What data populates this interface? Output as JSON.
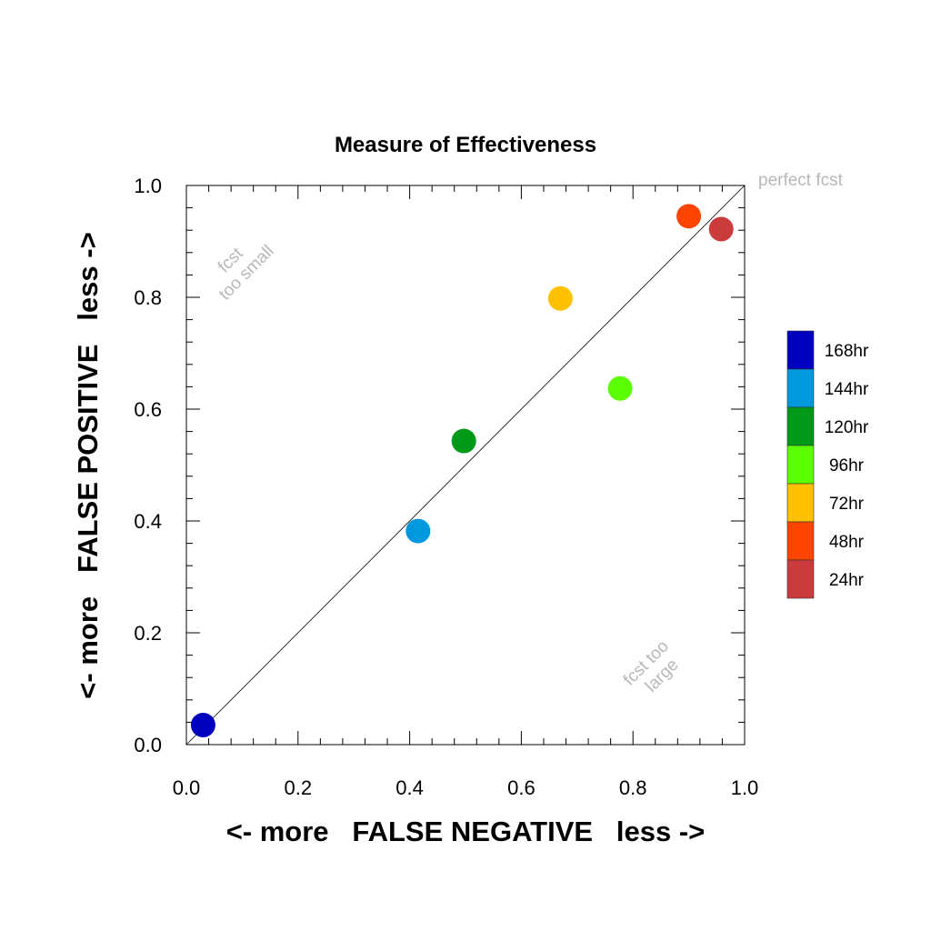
{
  "chart_data": {
    "type": "scatter",
    "title": "Measure of Effectiveness",
    "xlabel": "<- more   FALSE NEGATIVE   less ->",
    "ylabel": "<- more   FALSE POSITIVE   less ->",
    "xlim": [
      0.0,
      1.0
    ],
    "ylim": [
      0.0,
      1.0
    ],
    "xticks": [
      "0.0",
      "0.2",
      "0.4",
      "0.6",
      "0.8",
      "1.0"
    ],
    "yticks": [
      "0.0",
      "0.2",
      "0.4",
      "0.6",
      "0.8",
      "1.0"
    ],
    "grid": false,
    "legend_position": "right",
    "reference_line": {
      "from": [
        0,
        0
      ],
      "to": [
        1,
        1
      ],
      "label": "perfect fcst"
    },
    "annotations": {
      "upper_left": [
        "fcst",
        "too small"
      ],
      "lower_right": [
        "fcst too",
        "large"
      ]
    },
    "series": [
      {
        "name": "168hr",
        "x": 0.03,
        "y": 0.035,
        "color": "#0000c0"
      },
      {
        "name": "144hr",
        "x": 0.415,
        "y": 0.382,
        "color": "#0099dd"
      },
      {
        "name": "120hr",
        "x": 0.497,
        "y": 0.543,
        "color": "#009a18"
      },
      {
        "name": "96hr",
        "x": 0.777,
        "y": 0.637,
        "color": "#5bff00"
      },
      {
        "name": "72hr",
        "x": 0.67,
        "y": 0.798,
        "color": "#ffc000"
      },
      {
        "name": "48hr",
        "x": 0.9,
        "y": 0.945,
        "color": "#ff4400"
      },
      {
        "name": "24hr",
        "x": 0.958,
        "y": 0.922,
        "color": "#cc3b3b"
      }
    ]
  }
}
